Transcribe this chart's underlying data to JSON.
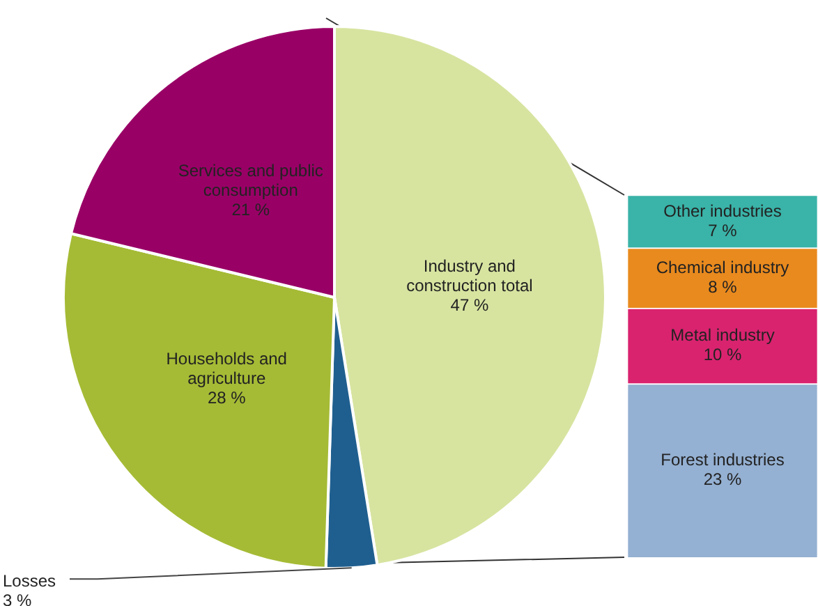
{
  "chart_data": [
    {
      "type": "pie",
      "categories": [
        "Industry and construction total",
        "Losses",
        "Households and agriculture",
        "Services and public consumption"
      ],
      "values": [
        47,
        3,
        28,
        21
      ],
      "colors": [
        "#d7e4a0",
        "#1f5f8f",
        "#a5bb35",
        "#990066"
      ],
      "value_labels": [
        "47 %",
        "3 %",
        "28 %",
        "21 %"
      ],
      "legend": false
    },
    {
      "type": "bar",
      "stacked": true,
      "categories": [
        null
      ],
      "tick_labels": false,
      "legend": false,
      "series": [
        {
          "name": "Forest industries",
          "color": "#94b0d2",
          "values": [
            23
          ],
          "value_labels": [
            "23 %"
          ]
        },
        {
          "name": "Metal industry",
          "color": "#d9236f",
          "values": [
            10
          ],
          "value_labels": [
            "10 %"
          ]
        },
        {
          "name": "Chemical industry",
          "color": "#e98a1e",
          "values": [
            8
          ],
          "value_labels": [
            "8 %"
          ]
        },
        {
          "name": "Other industries",
          "color": "#3ab3a8",
          "values": [
            7
          ],
          "value_labels": [
            "7 %"
          ]
        }
      ]
    }
  ]
}
